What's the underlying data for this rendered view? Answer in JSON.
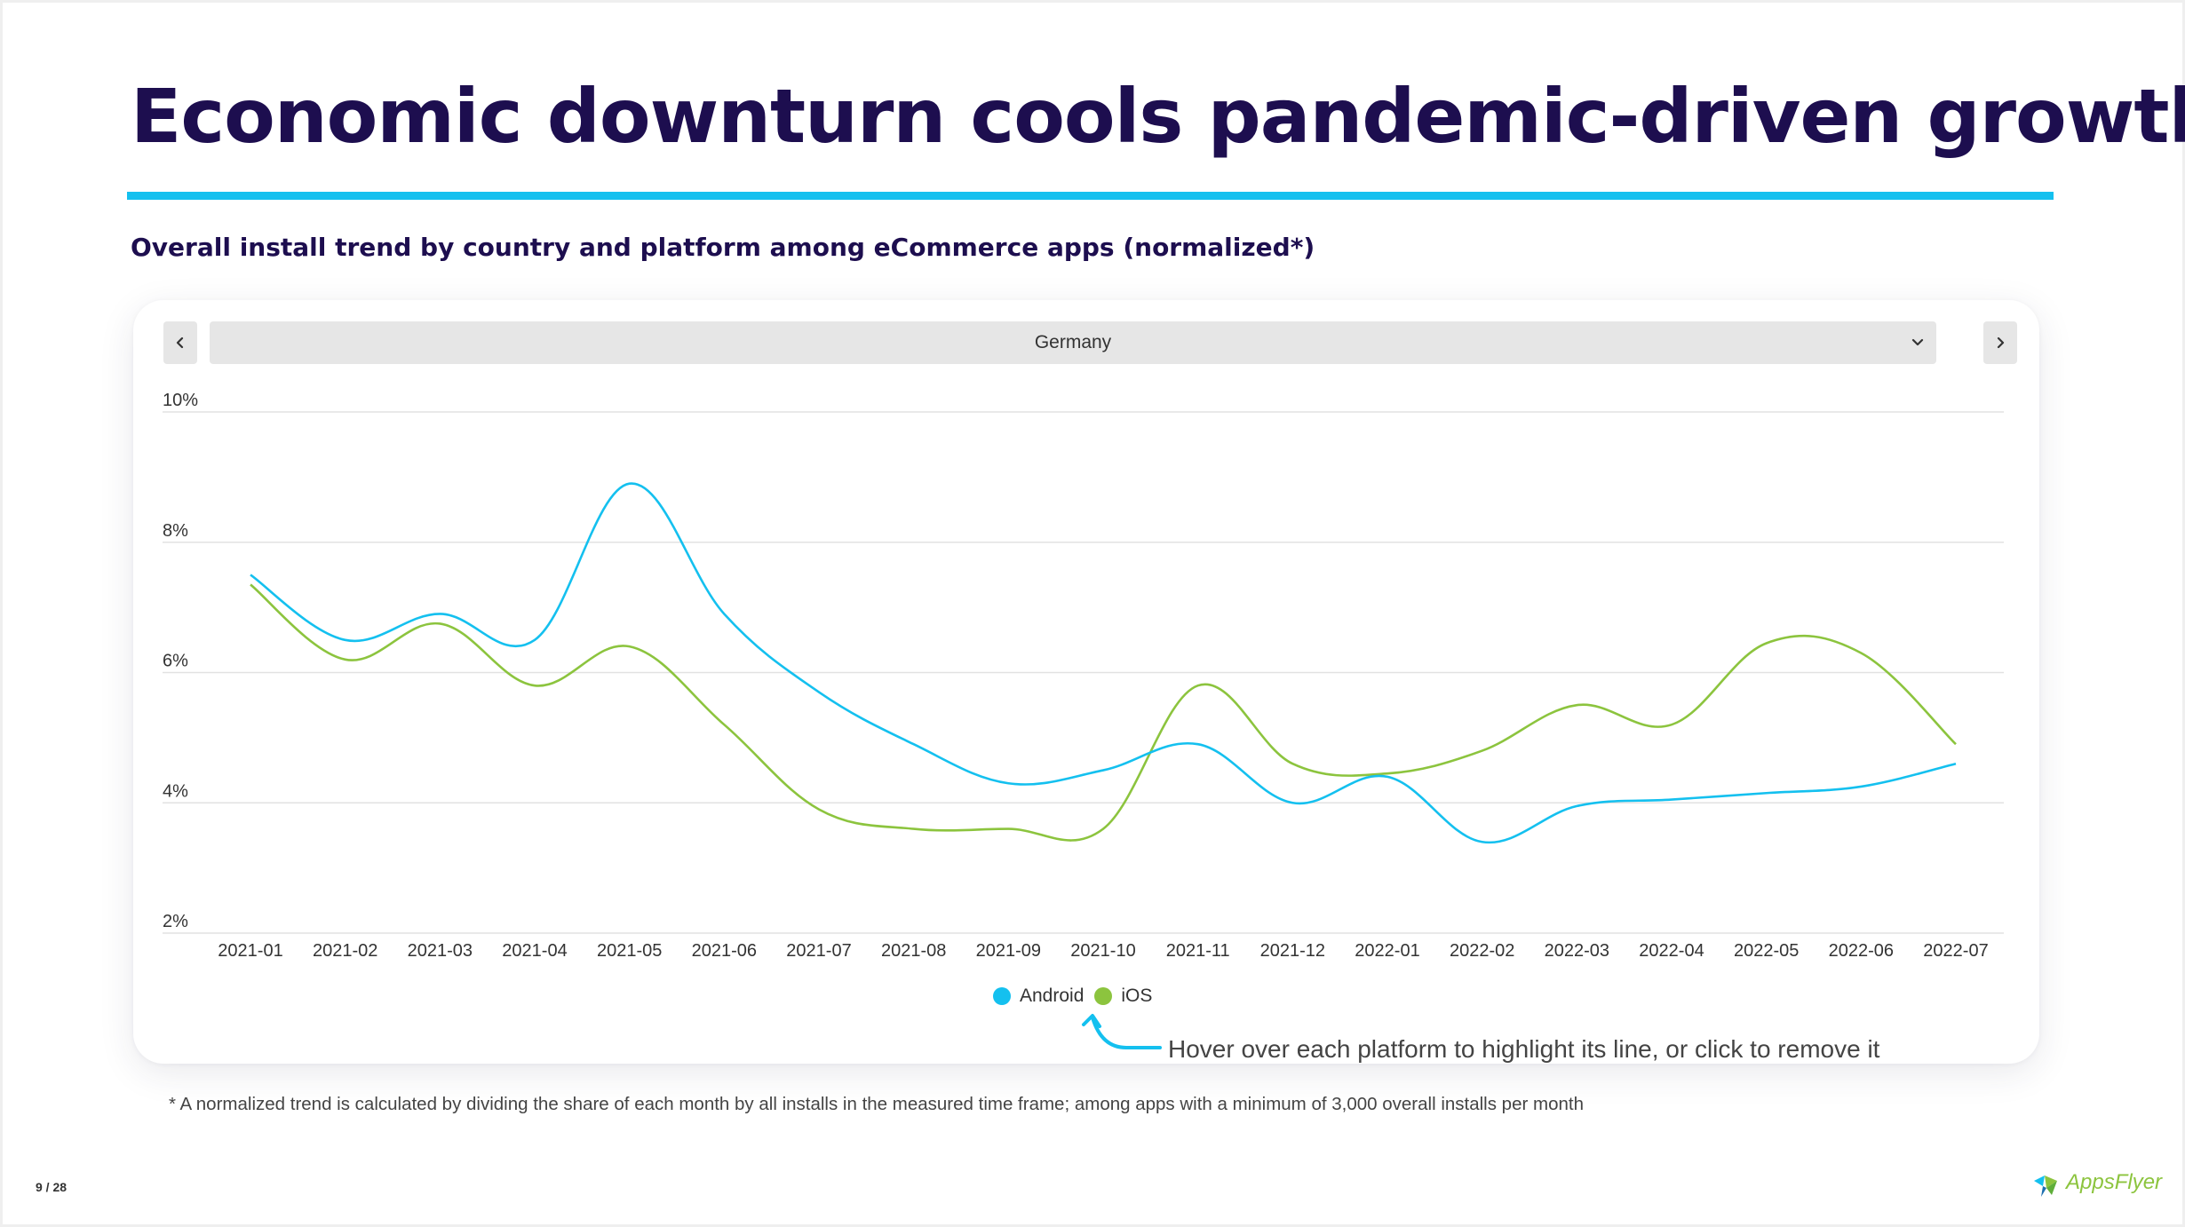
{
  "title": "Economic downturn cools pandemic-driven growth",
  "subtitle": "Overall install trend by country and platform among eCommerce apps (normalized*)",
  "country_select": {
    "value": "Germany",
    "prev_icon": "chevron-left-icon",
    "next_icon": "chevron-right-icon",
    "dropdown_icon": "chevron-down-icon"
  },
  "legend": {
    "android": "Android",
    "ios": "iOS"
  },
  "hint": "Hover over each platform to highlight its line, or click to remove it",
  "footnote": "* A normalized trend is calculated by dividing the share of each month by all installs in the measured time frame; among apps with a minimum of 3,000 overall installs per month",
  "page_number": "9 / 28",
  "brand": "AppsFlyer",
  "colors": {
    "title": "#1d0e4f",
    "accent_rule": "#14c0ef",
    "android": "#14c0ef",
    "ios": "#8cc43e"
  },
  "chart_data": {
    "type": "line",
    "x": [
      "2021-01",
      "2021-02",
      "2021-03",
      "2021-04",
      "2021-05",
      "2021-06",
      "2021-07",
      "2021-08",
      "2021-09",
      "2021-10",
      "2021-11",
      "2021-12",
      "2022-01",
      "2022-02",
      "2022-03",
      "2022-04",
      "2022-05",
      "2022-06",
      "2022-07"
    ],
    "series": [
      {
        "name": "Android",
        "color": "#14c0ef",
        "values": [
          7.5,
          6.5,
          6.9,
          6.5,
          8.9,
          6.9,
          5.7,
          4.9,
          4.3,
          4.5,
          4.9,
          4.0,
          4.4,
          3.4,
          3.95,
          4.05,
          4.15,
          4.25,
          4.6
        ]
      },
      {
        "name": "iOS",
        "color": "#8cc43e",
        "values": [
          7.35,
          6.2,
          6.75,
          5.8,
          6.4,
          5.2,
          3.9,
          3.6,
          3.6,
          3.6,
          5.8,
          4.6,
          4.45,
          4.8,
          5.5,
          5.2,
          6.45,
          6.3,
          4.9
        ]
      }
    ],
    "y_ticks": [
      "10%",
      "8%",
      "6%",
      "4%",
      "2%"
    ],
    "ylim": [
      2,
      10
    ],
    "grid": true,
    "legend_position": "bottom-center",
    "xlabel": "",
    "ylabel": ""
  }
}
